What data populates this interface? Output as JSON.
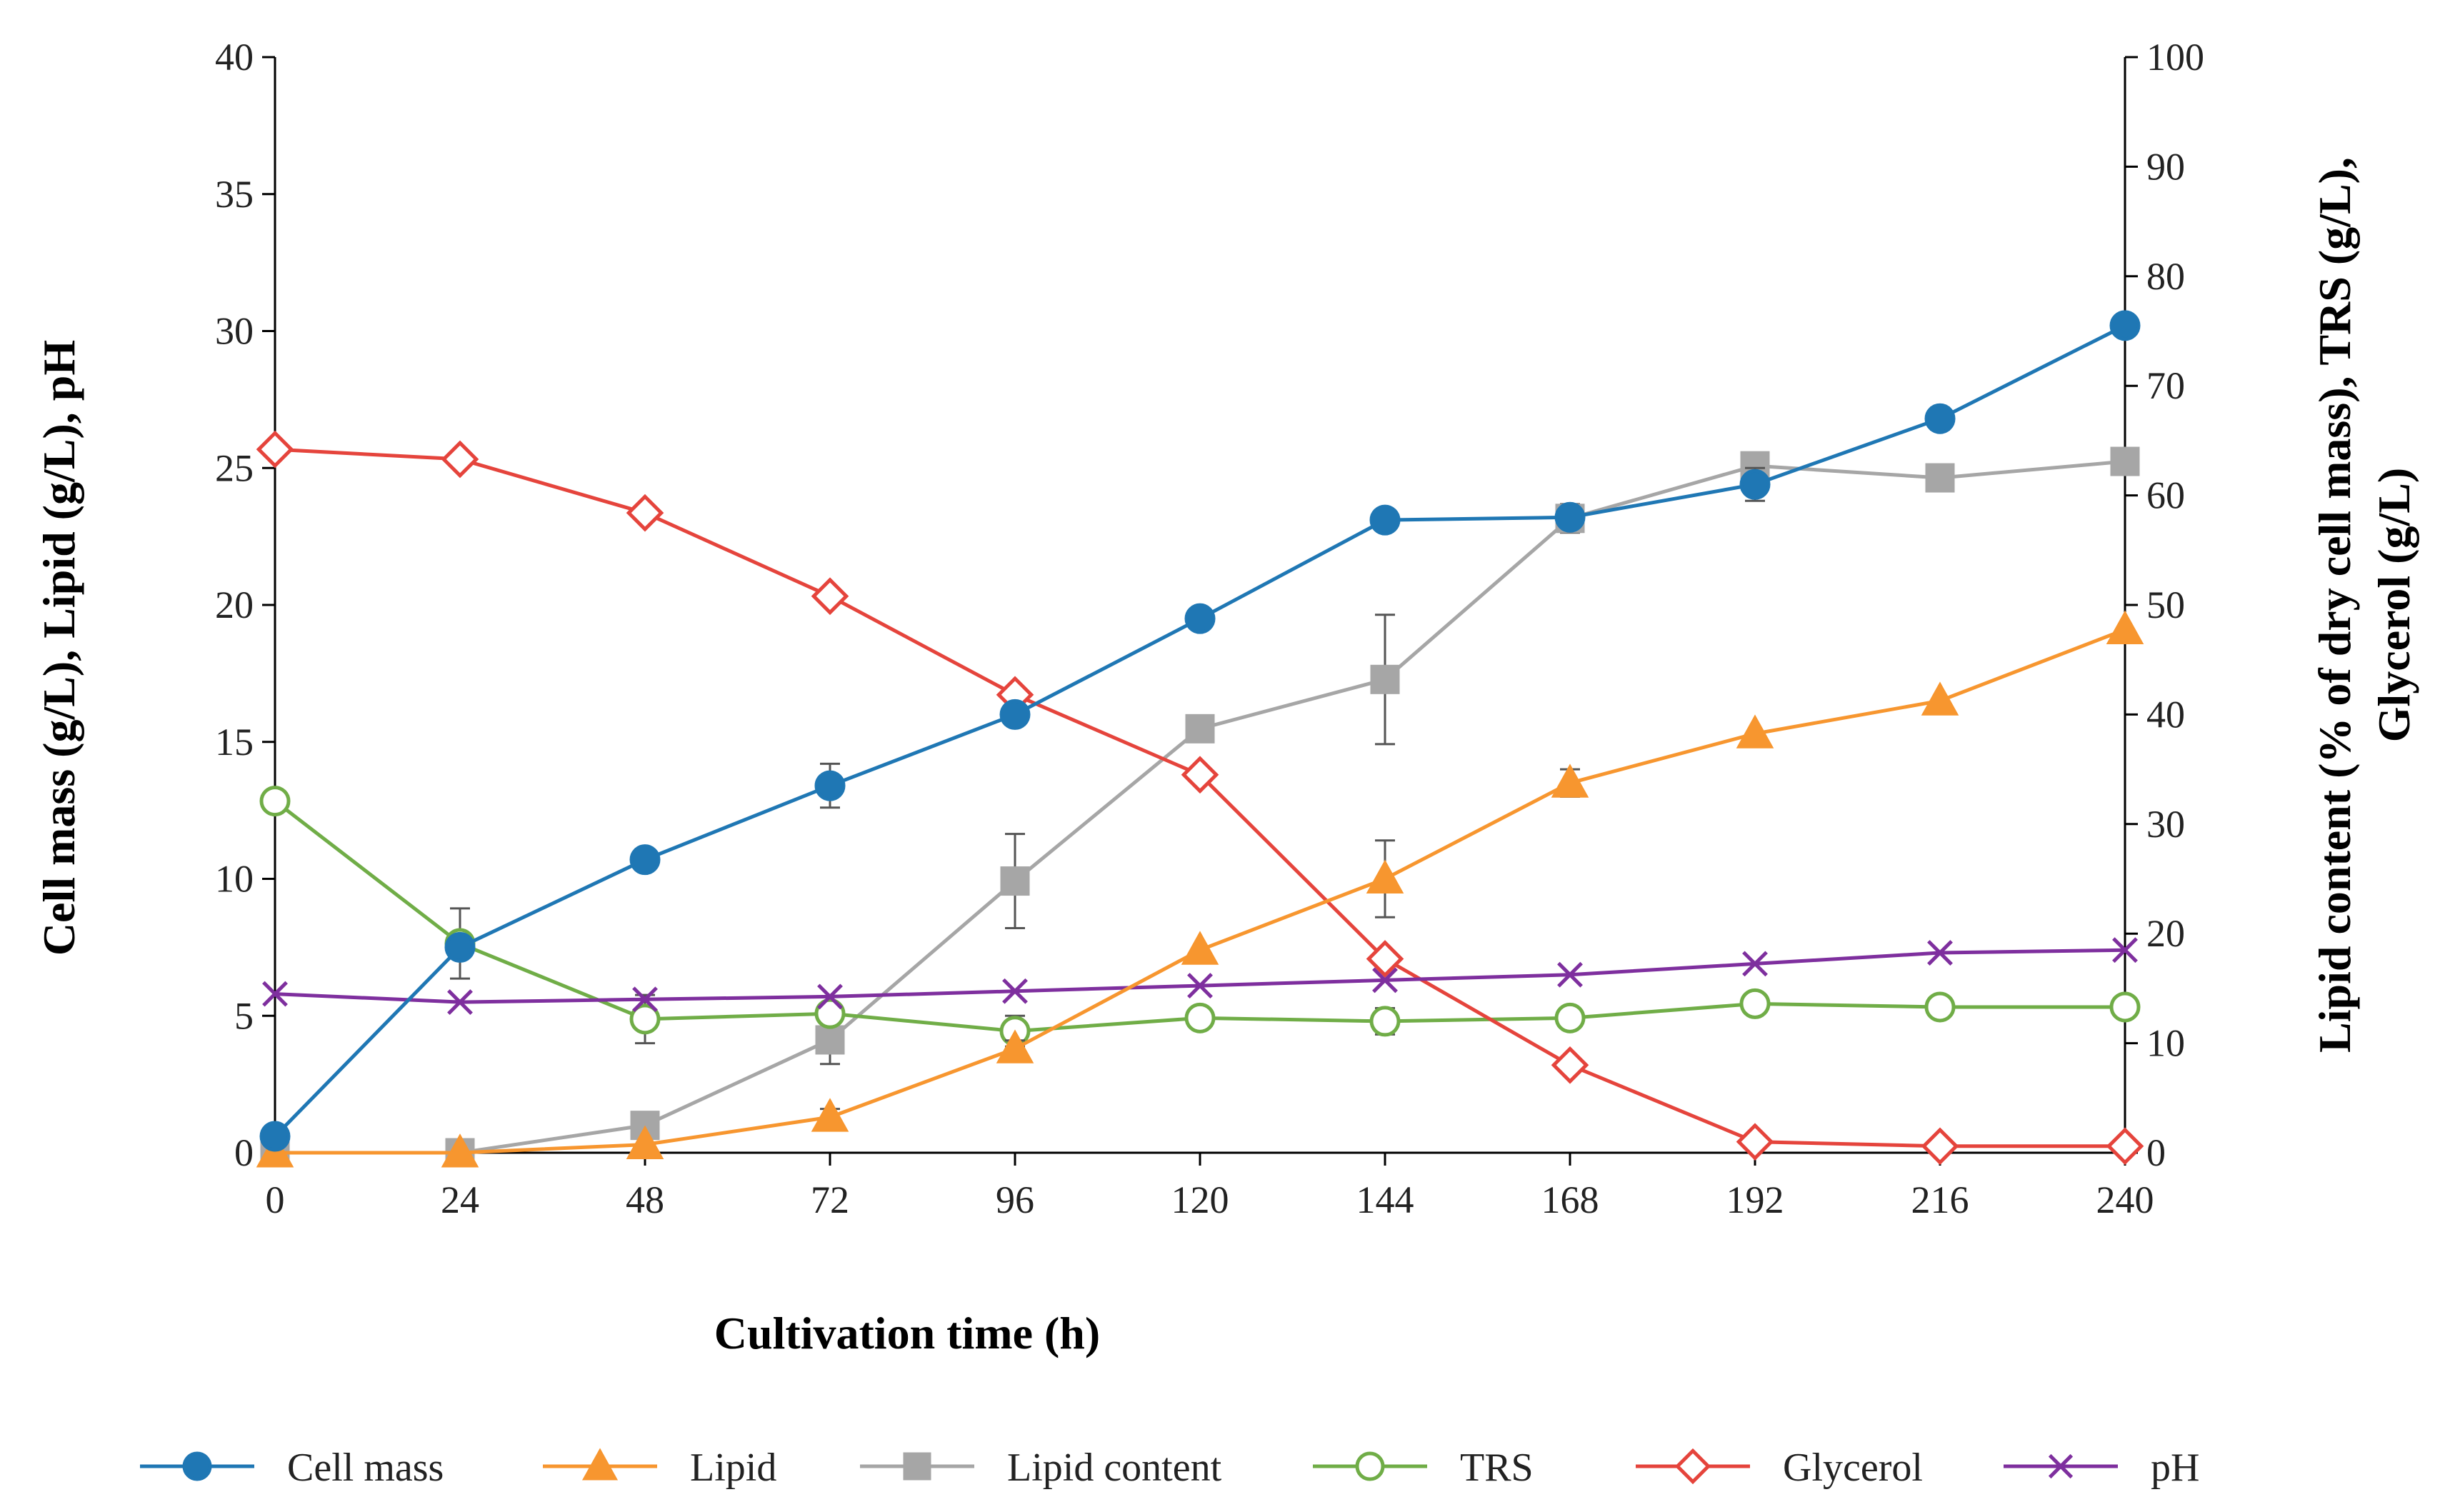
{
  "chart_data": {
    "type": "line",
    "x": [
      0,
      24,
      48,
      72,
      96,
      120,
      144,
      168,
      192,
      216,
      240
    ],
    "xlabel": "Cultivation time (h)",
    "ylabel_left": "Cell mass (g/L), Lipid (g/L), pH",
    "ylabel_right_line1": "Lipid content (% of dry cell mass), TRS (g/L),",
    "ylabel_right_line2": "Glycerol (g/L)",
    "xlim": [
      0,
      240
    ],
    "ylim_left": [
      0,
      40
    ],
    "ylim_right": [
      0,
      100
    ],
    "xticks": [
      "0",
      "24",
      "48",
      "72",
      "96",
      "120",
      "144",
      "168",
      "192",
      "216",
      "240"
    ],
    "yticks_left": [
      "0",
      "5",
      "10",
      "15",
      "20",
      "25",
      "30",
      "35",
      "40"
    ],
    "yticks_right": [
      "0",
      "10",
      "20",
      "30",
      "40",
      "50",
      "60",
      "70",
      "80",
      "90",
      "100"
    ],
    "grid": false,
    "legend_position": "bottom",
    "series": [
      {
        "name": "Cell mass",
        "axis": "left",
        "color": "#1f77b4",
        "marker": "circle",
        "filled": true,
        "values": [
          0.6,
          7.5,
          10.7,
          13.4,
          16.0,
          19.5,
          23.1,
          23.2,
          24.4,
          26.8,
          30.2
        ],
        "errors": [
          0,
          0.3,
          0,
          0.8,
          0,
          0.3,
          0,
          0,
          0.6,
          0.4,
          0
        ]
      },
      {
        "name": "Lipid",
        "axis": "left",
        "color": "#f7962f",
        "marker": "triangle",
        "filled": true,
        "values": [
          0,
          0,
          0.3,
          1.3,
          3.8,
          7.4,
          10.0,
          13.5,
          15.3,
          16.5,
          19.1
        ],
        "errors": [
          0,
          0,
          0,
          0.3,
          0.3,
          0,
          1.4,
          0.5,
          0,
          0,
          0
        ]
      },
      {
        "name": "Lipid content",
        "axis": "right",
        "color": "#a6a6a6",
        "marker": "square",
        "filled": true,
        "values": [
          0,
          0,
          2.5,
          10.3,
          24.8,
          38.7,
          43.2,
          57.9,
          62.7,
          61.6,
          63.1
        ],
        "errors": [
          0,
          0,
          0,
          2.2,
          4.3,
          0,
          5.9,
          1.3,
          0,
          0,
          0
        ]
      },
      {
        "name": "TRS",
        "axis": "right",
        "color": "#70ad47",
        "marker": "circle",
        "filled": false,
        "values": [
          32.1,
          19.1,
          12.2,
          12.7,
          11.1,
          12.3,
          12.0,
          12.3,
          13.6,
          13.3,
          13.3
        ],
        "errors": [
          0,
          3.2,
          2.2,
          0,
          1.4,
          0,
          1.2,
          0,
          0,
          0,
          0
        ]
      },
      {
        "name": "Glycerol",
        "axis": "right",
        "color": "#e5443c",
        "marker": "diamond",
        "filled": false,
        "values": [
          64.2,
          63.3,
          58.4,
          50.8,
          41.8,
          34.5,
          17.7,
          8.0,
          1.0,
          0.6,
          0.6
        ],
        "errors": [
          0,
          0,
          0,
          0,
          0,
          0,
          0,
          0,
          0,
          0,
          0
        ]
      },
      {
        "name": "pH",
        "axis": "left",
        "color": "#7e2f9e",
        "marker": "x",
        "filled": false,
        "values": [
          5.8,
          5.5,
          5.6,
          5.7,
          5.9,
          6.1,
          6.3,
          6.5,
          6.9,
          7.3,
          7.4
        ],
        "errors": [
          0,
          0,
          0,
          0,
          0,
          0,
          0,
          0,
          0,
          0,
          0
        ]
      }
    ]
  }
}
